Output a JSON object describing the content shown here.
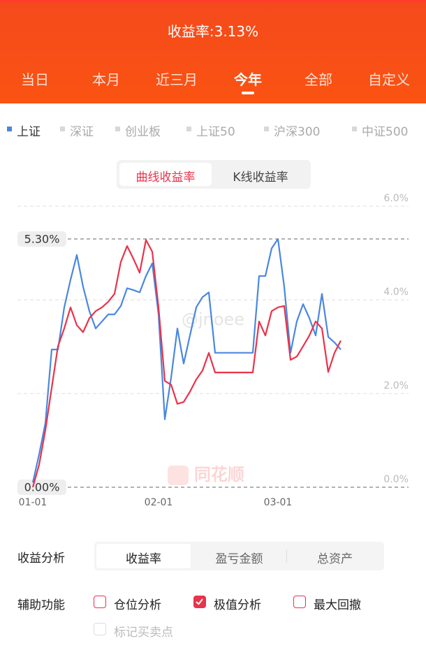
{
  "header": {
    "title": "收益率:3.13%"
  },
  "period_tabs": {
    "items": [
      "当日",
      "本月",
      "近三月",
      "今年",
      "全部",
      "自定义"
    ],
    "active": 3
  },
  "index_tabs": {
    "items": [
      "上证",
      "深证",
      "创业板",
      "上证50",
      "沪深300",
      "中证500"
    ],
    "active": 0
  },
  "view_toggle": {
    "items": [
      "曲线收益率",
      "K线收益率"
    ],
    "active": 0
  },
  "chart_data": {
    "type": "line",
    "categories": [
      "01-01",
      null,
      null,
      null,
      null,
      null,
      null,
      null,
      null,
      null,
      null,
      null,
      null,
      null,
      null,
      null,
      null,
      null,
      null,
      null,
      "02-01",
      null,
      null,
      null,
      null,
      null,
      null,
      null,
      null,
      null,
      null,
      null,
      null,
      null,
      null,
      null,
      null,
      null,
      null,
      "03-01",
      null,
      null,
      null,
      null,
      null,
      null,
      null,
      null,
      null,
      null
    ],
    "series": [
      {
        "color": "#4a87e0",
        "values": [
          0.1,
          0.7,
          1.37,
          2.94,
          2.94,
          3.84,
          4.43,
          4.96,
          4.28,
          3.76,
          3.39,
          3.54,
          3.69,
          3.69,
          3.87,
          4.25,
          4.21,
          4.16,
          4.51,
          4.78,
          3.69,
          1.45,
          2.34,
          3.39,
          2.64,
          3.24,
          3.84,
          4.06,
          4.16,
          2.87,
          2.87,
          2.87,
          2.87,
          2.87,
          2.87,
          2.87,
          4.51,
          4.51,
          5.1,
          5.3,
          4.28,
          2.87,
          3.54,
          3.91,
          3.61,
          3.24,
          4.13,
          3.21,
          3.09,
          2.94
        ]
      },
      {
        "color": "#e8334a",
        "values": [
          0,
          0.48,
          1.22,
          2.12,
          3.01,
          3.39,
          3.84,
          3.46,
          3.31,
          3.61,
          3.76,
          3.84,
          3.96,
          4.13,
          4.81,
          5.15,
          4.88,
          4.58,
          5.28,
          5.03,
          3.84,
          2.27,
          2.19,
          1.78,
          1.82,
          2.04,
          2.3,
          2.49,
          2.87,
          2.45,
          2.45,
          2.45,
          2.45,
          2.45,
          2.45,
          2.45,
          3.54,
          3.24,
          3.76,
          3.84,
          3.87,
          2.72,
          2.79,
          3.01,
          3.24,
          3.54,
          3.39,
          2.46,
          2.87,
          3.13
        ]
      }
    ],
    "ylim": [
      0,
      6
    ],
    "yticks": [
      {
        "value": 0,
        "label": "0.0%"
      },
      {
        "value": 2,
        "label": "2.0%"
      },
      {
        "value": 4,
        "label": "4.0%"
      },
      {
        "value": 6,
        "label": "6.0%"
      }
    ],
    "grid": true,
    "annotations": [
      {
        "value": 5.3,
        "label": "5.30%"
      },
      {
        "value": 0,
        "label": "0.00%"
      }
    ]
  },
  "watermarks": [
    "@jnoee",
    "同花顺"
  ],
  "analysis": {
    "label": "收益分析",
    "items": [
      "收益率",
      "盈亏金额",
      "总资产"
    ],
    "active": 0
  },
  "tools": {
    "label": "辅助功能",
    "items": [
      {
        "label": "仓位分析",
        "checked": false
      },
      {
        "label": "极值分析",
        "checked": true
      },
      {
        "label": "最大回撤",
        "checked": false
      },
      {
        "label": "标记买卖点",
        "checked": false,
        "disabled": true
      }
    ]
  }
}
